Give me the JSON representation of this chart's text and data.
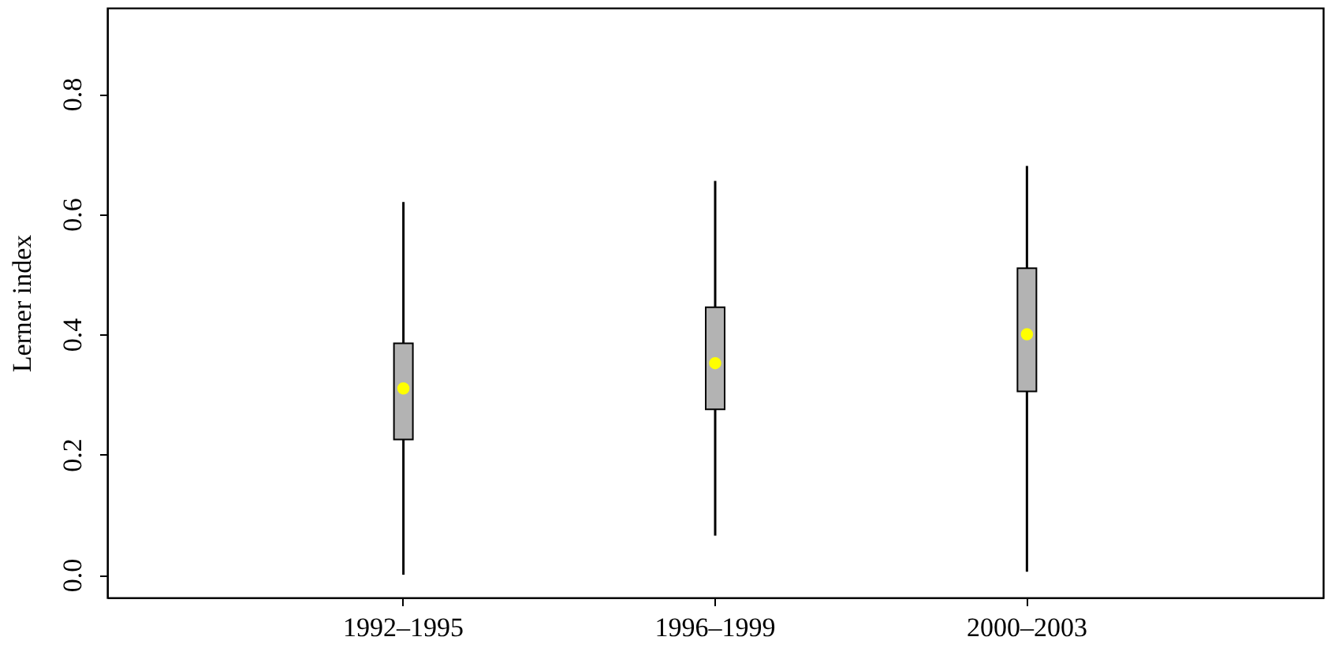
{
  "chart_data": {
    "type": "box",
    "ylabel": "Lerner index",
    "categories": [
      "1992–1995",
      "1996–1999",
      "2000–2003"
    ],
    "boxes": [
      {
        "low": 0.0,
        "q1": 0.225,
        "median": 0.31,
        "q3": 0.385,
        "high": 0.62
      },
      {
        "low": 0.065,
        "q1": 0.275,
        "median": 0.352,
        "q3": 0.445,
        "high": 0.655
      },
      {
        "low": 0.005,
        "q1": 0.305,
        "median": 0.4,
        "q3": 0.51,
        "high": 0.68
      }
    ],
    "color": "#b3b3b3",
    "ylim": [
      -0.038,
      0.943
    ],
    "yticks": [
      {
        "value": 0,
        "label": "0.0"
      },
      {
        "value": 0.2,
        "label": "0.2"
      },
      {
        "value": 0.4,
        "label": "0.4"
      },
      {
        "value": 0.6,
        "label": "0.6"
      },
      {
        "value": 0.8,
        "label": "0.8"
      }
    ],
    "grid": false
  }
}
